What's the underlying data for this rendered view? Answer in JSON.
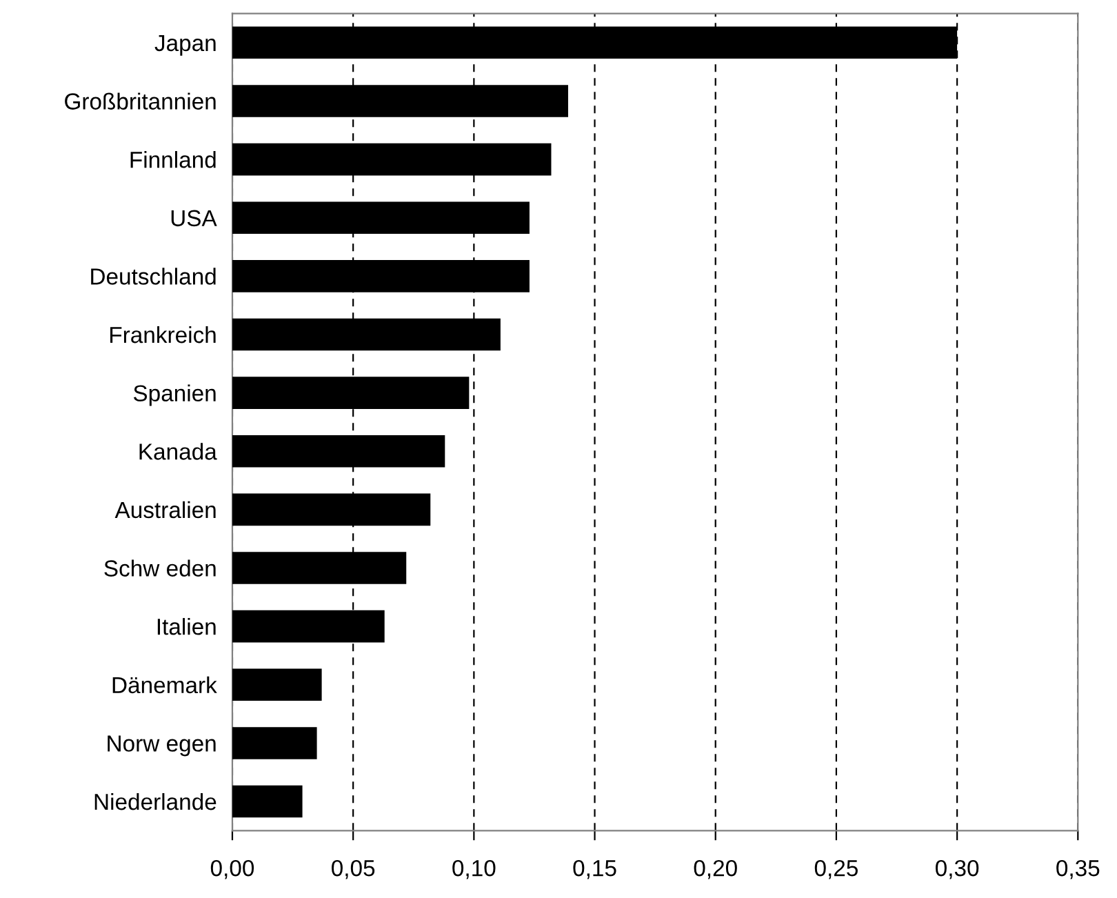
{
  "chart_data": {
    "type": "bar",
    "orientation": "horizontal",
    "categories": [
      "Japan",
      "Großbritannien",
      "Finnland",
      "USA",
      "Deutschland",
      "Frankreich",
      "Spanien",
      "Kanada",
      "Australien",
      "Schw eden",
      "Italien",
      "Dänemark",
      "Norw egen",
      "Niederlande"
    ],
    "values": [
      0.3,
      0.139,
      0.132,
      0.123,
      0.123,
      0.111,
      0.098,
      0.088,
      0.082,
      0.072,
      0.063,
      0.037,
      0.035,
      0.029
    ],
    "color": "#000000",
    "xlim": [
      0,
      0.35
    ],
    "xticks": [
      {
        "value": 0,
        "label": "0,00"
      },
      {
        "value": 0.05,
        "label": "0,05"
      },
      {
        "value": 0.1,
        "label": "0,10"
      },
      {
        "value": 0.15,
        "label": "0,15"
      },
      {
        "value": 0.2,
        "label": "0,20"
      },
      {
        "value": 0.25,
        "label": "0,25"
      },
      {
        "value": 0.3,
        "label": "0,30"
      },
      {
        "value": 0.35,
        "label": "0,35"
      }
    ],
    "grid": "x",
    "line_style": "dashed"
  }
}
